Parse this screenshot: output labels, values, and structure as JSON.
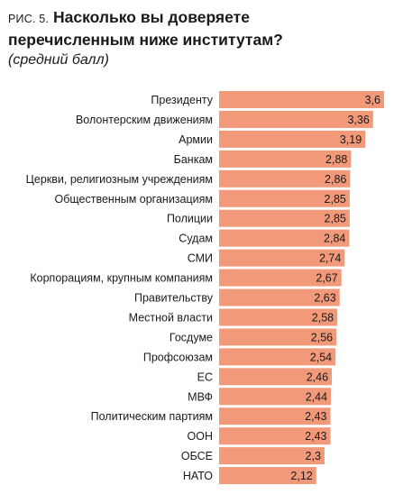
{
  "figure": {
    "prefix": "РИС. 5.",
    "title_line1": "Насколько вы доверяете",
    "title_line2": "перечисленным ниже институтам?",
    "subtitle": "(средний балл)"
  },
  "colors": {
    "bar": "#f2997a",
    "text": "#1a1a1a",
    "background": "#ffffff"
  },
  "chart_data": {
    "type": "bar",
    "orientation": "horizontal",
    "title": "Насколько вы доверяете перечисленным ниже институтам?",
    "subtitle": "(средний балл)",
    "xlim": [
      0,
      3.6
    ],
    "categories": [
      "Президенту",
      "Волонтерским движениям",
      "Армии",
      "Банкам",
      "Церкви, религиозным учреждениям",
      "Общественным организациям",
      "Полиции",
      "Судам",
      "СМИ",
      "Корпорациям, крупным компаниям",
      "Правительству",
      "Местной власти",
      "Госдуме",
      "Профсоюзам",
      "ЕС",
      "МВФ",
      "Политическим партиям",
      "ООН",
      "ОБСЕ",
      "НАТО"
    ],
    "values": [
      3.6,
      3.36,
      3.19,
      2.88,
      2.86,
      2.85,
      2.85,
      2.84,
      2.74,
      2.67,
      2.63,
      2.58,
      2.56,
      2.54,
      2.46,
      2.44,
      2.43,
      2.43,
      2.3,
      2.12
    ],
    "value_labels": [
      "3,6",
      "3,36",
      "3,19",
      "2,88",
      "2,86",
      "2,85",
      "2,85",
      "2,84",
      "2,74",
      "2,67",
      "2,63",
      "2,58",
      "2,56",
      "2,54",
      "2,46",
      "2,44",
      "2,43",
      "2,43",
      "2,3",
      "2,12"
    ]
  }
}
